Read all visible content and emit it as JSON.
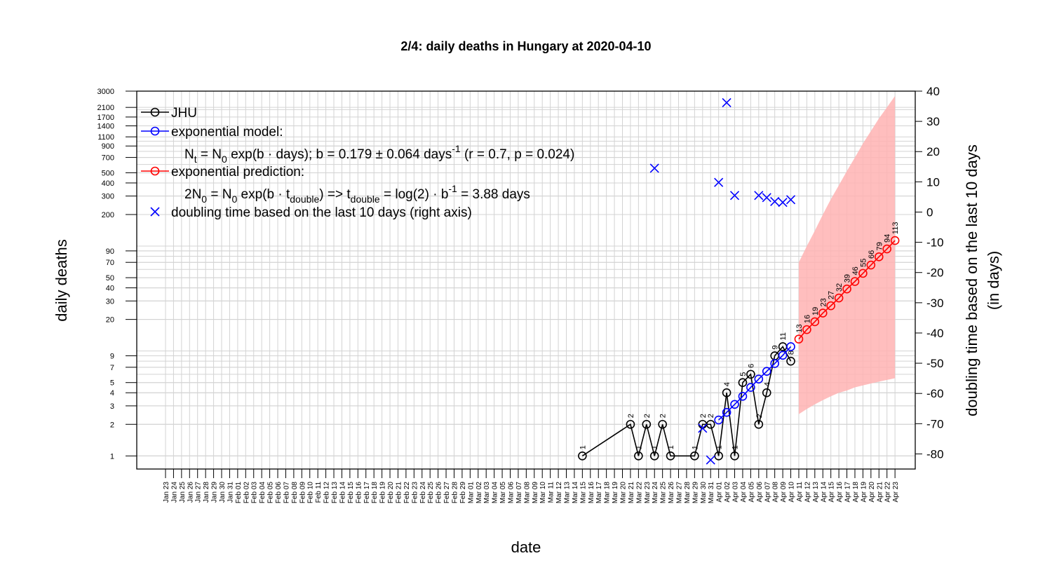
{
  "chart_data": {
    "type": "line",
    "title": "2/4: daily deaths in Hungary at 2020-04-10",
    "xlabel": "date",
    "ylabel": "daily deaths",
    "y2label_line1": "doubling time based on the last 10 days",
    "y2label_line2": "(in days)",
    "y_scale": "log",
    "ylim": [
      0.75,
      3000
    ],
    "y2lim": [
      -85,
      40
    ],
    "grid": true,
    "legend_position": "top-left",
    "colors": {
      "jhu": "#000000",
      "model": "#0000ff",
      "prediction": "#ff0000",
      "band": "#ffb3b3",
      "doubling": "#0000ff",
      "grid": "#d3d3d3"
    },
    "y_ticks": [
      1,
      2,
      3,
      4,
      5,
      7,
      9,
      20,
      30,
      40,
      50,
      70,
      90,
      200,
      300,
      400,
      500,
      700,
      900,
      1100,
      1400,
      1700,
      2100,
      3000
    ],
    "y2_ticks": [
      -80,
      -70,
      -60,
      -50,
      -40,
      -30,
      -20,
      -10,
      0,
      10,
      20,
      30,
      40
    ],
    "x_labels": [
      "Jan 23",
      "Jan 24",
      "Jan 25",
      "Jan 26",
      "Jan 27",
      "Jan 28",
      "Jan 29",
      "Jan 30",
      "Jan 31",
      "Feb 01",
      "Feb 02",
      "Feb 03",
      "Feb 04",
      "Feb 05",
      "Feb 06",
      "Feb 07",
      "Feb 08",
      "Feb 09",
      "Feb 10",
      "Feb 11",
      "Feb 12",
      "Feb 13",
      "Feb 14",
      "Feb 15",
      "Feb 16",
      "Feb 17",
      "Feb 18",
      "Feb 19",
      "Feb 20",
      "Feb 21",
      "Feb 22",
      "Feb 23",
      "Feb 24",
      "Feb 25",
      "Feb 26",
      "Feb 27",
      "Feb 28",
      "Feb 29",
      "Mar 01",
      "Mar 02",
      "Mar 03",
      "Mar 04",
      "Mar 05",
      "Mar 06",
      "Mar 07",
      "Mar 08",
      "Mar 09",
      "Mar 10",
      "Mar 11",
      "Mar 12",
      "Mar 13",
      "Mar 14",
      "Mar 15",
      "Mar 16",
      "Mar 17",
      "Mar 18",
      "Mar 19",
      "Mar 20",
      "Mar 21",
      "Mar 22",
      "Mar 23",
      "Mar 24",
      "Mar 25",
      "Mar 26",
      "Mar 27",
      "Mar 28",
      "Mar 29",
      "Mar 30",
      "Mar 31",
      "Apr 01",
      "Apr 02",
      "Apr 03",
      "Apr 04",
      "Apr 05",
      "Apr 06",
      "Apr 07",
      "Apr 08",
      "Apr 09",
      "Apr 10",
      "Apr 11",
      "Apr 12",
      "Apr 13",
      "Apr 14",
      "Apr 15",
      "Apr 16",
      "Apr 17",
      "Apr 18",
      "Apr 19",
      "Apr 20",
      "Apr 21",
      "Apr 22",
      "Apr 23"
    ],
    "series": [
      {
        "name": "JHU",
        "x": [
          "Mar 15",
          "Mar 21",
          "Mar 22",
          "Mar 23",
          "Mar 24",
          "Mar 25",
          "Mar 26",
          "Mar 29",
          "Mar 30",
          "Mar 31",
          "Apr 01",
          "Apr 02",
          "Apr 03",
          "Apr 04",
          "Apr 05",
          "Apr 06",
          "Apr 07",
          "Apr 08",
          "Apr 09",
          "Apr 10"
        ],
        "values": [
          1,
          2,
          1,
          2,
          1,
          2,
          1,
          1,
          2,
          2,
          1,
          4,
          1,
          5,
          6,
          2,
          4,
          9,
          11,
          8
        ],
        "labels": [
          "1",
          "2",
          "1",
          "2",
          "1",
          "2",
          "1",
          "1",
          "2",
          "2",
          "1",
          "4",
          "1",
          "5",
          "6",
          "2",
          "4",
          "9",
          "11",
          "8"
        ]
      },
      {
        "name": "exponential model:",
        "x": [
          "Apr 01",
          "Apr 02",
          "Apr 03",
          "Apr 04",
          "Apr 05",
          "Apr 06",
          "Apr 07",
          "Apr 08",
          "Apr 09",
          "Apr 10"
        ],
        "values": [
          2.2,
          2.6,
          3.1,
          3.7,
          4.5,
          5.4,
          6.4,
          7.6,
          9.1,
          11
        ]
      },
      {
        "name": "exponential prediction:",
        "x": [
          "Apr 11",
          "Apr 12",
          "Apr 13",
          "Apr 14",
          "Apr 15",
          "Apr 16",
          "Apr 17",
          "Apr 18",
          "Apr 19",
          "Apr 20",
          "Apr 21",
          "Apr 22",
          "Apr 23"
        ],
        "values": [
          13,
          16,
          19,
          23,
          27,
          32,
          39,
          46,
          55,
          66,
          79,
          94,
          113
        ],
        "labels": [
          "13",
          "16",
          "19",
          "23",
          "27",
          "32",
          "39",
          "46",
          "55",
          "66",
          "79",
          "94",
          "113"
        ],
        "band_lower": [
          2.5,
          2.8,
          3.1,
          3.4,
          3.7,
          4.0,
          4.2,
          4.5,
          4.7,
          4.9,
          5.1,
          5.3,
          5.5
        ],
        "band_upper": [
          70,
          100,
          140,
          200,
          280,
          380,
          520,
          700,
          950,
          1250,
          1650,
          2100,
          2700
        ]
      },
      {
        "name": "doubling time based on the last  10  days (right axis)",
        "axis": "right",
        "x": [
          "Mar 24",
          "Mar 30",
          "Mar 31",
          "Apr 01",
          "Apr 02",
          "Apr 03",
          "Apr 06",
          "Apr 07",
          "Apr 08",
          "Apr 09",
          "Apr 10"
        ],
        "values": [
          14.5,
          -71.5,
          -82,
          9.8,
          36.2,
          5.5,
          5.5,
          4.8,
          3.5,
          3.2,
          4.1
        ]
      }
    ],
    "legend": {
      "jhu": "JHU",
      "model": "exponential model:",
      "model_formula": "N_t = N_0 exp(b · days); b = 0.179 ± 0.064 days^-1 (r = 0.7, p = 0.024)",
      "prediction": "exponential prediction:",
      "prediction_formula": "2N_0 = N_0 exp(b · t_double) => t_double = log(2) · b^-1 = 3.88 days",
      "doubling": "doubling time based on the last  10  days (right axis)"
    }
  }
}
